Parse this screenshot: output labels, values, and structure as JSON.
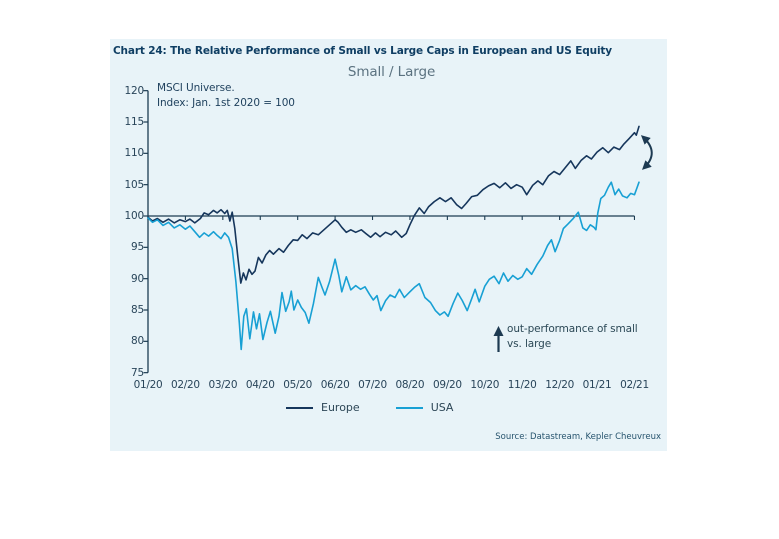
{
  "card": {
    "title": "Chart 24: The Relative Performance of Small vs Large Caps in European and US Equity",
    "source": "Source: Datastream, Kepler Cheuvreux"
  },
  "chart_data": {
    "type": "line",
    "title": "Small / Large",
    "note_line1": "MSCI Universe.",
    "note_line2": "Index: Jan. 1st 2020 = 100",
    "x_tick_labels": [
      "01/20",
      "02/20",
      "03/20",
      "04/20",
      "05/20",
      "06/20",
      "07/20",
      "08/20",
      "09/20",
      "10/20",
      "11/20",
      "12/20",
      "01/21",
      "02/21"
    ],
    "y_ticks": [
      120,
      115,
      110,
      105,
      100,
      95,
      90,
      85,
      80,
      75
    ],
    "ylim": [
      75,
      120
    ],
    "baseline": 100,
    "grid": false,
    "legend_position": "bottom",
    "annotation": {
      "line1": "out-performance of small",
      "line2": "vs. large"
    },
    "series": [
      {
        "name": "Europe",
        "color": "#16365c",
        "points": [
          [
            0,
            99.8
          ],
          [
            0.12,
            99.2
          ],
          [
            0.25,
            99.6
          ],
          [
            0.4,
            99
          ],
          [
            0.55,
            99.5
          ],
          [
            0.7,
            98.9
          ],
          [
            0.85,
            99.4
          ],
          [
            1,
            99.1
          ],
          [
            1.12,
            99.5
          ],
          [
            1.25,
            98.9
          ],
          [
            1.4,
            99.6
          ],
          [
            1.5,
            100.5
          ],
          [
            1.62,
            100.2
          ],
          [
            1.75,
            100.9
          ],
          [
            1.85,
            100.5
          ],
          [
            1.95,
            101
          ],
          [
            2.05,
            100.4
          ],
          [
            2.12,
            100.9
          ],
          [
            2.19,
            99.2
          ],
          [
            2.25,
            100.6
          ],
          [
            2.32,
            98
          ],
          [
            2.4,
            93.5
          ],
          [
            2.48,
            89.3
          ],
          [
            2.55,
            90.9
          ],
          [
            2.62,
            89.8
          ],
          [
            2.7,
            91.5
          ],
          [
            2.78,
            90.7
          ],
          [
            2.86,
            91.2
          ],
          [
            2.95,
            93.4
          ],
          [
            3.05,
            92.5
          ],
          [
            3.15,
            93.8
          ],
          [
            3.25,
            94.5
          ],
          [
            3.35,
            93.9
          ],
          [
            3.5,
            94.8
          ],
          [
            3.62,
            94.2
          ],
          [
            3.75,
            95.3
          ],
          [
            3.88,
            96.2
          ],
          [
            4,
            96.1
          ],
          [
            4.12,
            97
          ],
          [
            4.25,
            96.4
          ],
          [
            4.4,
            97.3
          ],
          [
            4.55,
            97
          ],
          [
            4.7,
            97.8
          ],
          [
            4.85,
            98.6
          ],
          [
            5,
            99.4
          ],
          [
            5.08,
            99
          ],
          [
            5.18,
            98.2
          ],
          [
            5.3,
            97.4
          ],
          [
            5.42,
            97.8
          ],
          [
            5.55,
            97.4
          ],
          [
            5.7,
            97.8
          ],
          [
            5.82,
            97.2
          ],
          [
            5.95,
            96.6
          ],
          [
            6.08,
            97.3
          ],
          [
            6.2,
            96.7
          ],
          [
            6.35,
            97.4
          ],
          [
            6.5,
            97
          ],
          [
            6.62,
            97.6
          ],
          [
            6.78,
            96.6
          ],
          [
            6.9,
            97.2
          ],
          [
            7,
            98.6
          ],
          [
            7.12,
            100.1
          ],
          [
            7.25,
            101.3
          ],
          [
            7.38,
            100.4
          ],
          [
            7.5,
            101.5
          ],
          [
            7.65,
            102.3
          ],
          [
            7.8,
            102.9
          ],
          [
            7.95,
            102.3
          ],
          [
            8.1,
            102.9
          ],
          [
            8.25,
            101.8
          ],
          [
            8.38,
            101.2
          ],
          [
            8.5,
            102
          ],
          [
            8.65,
            103.1
          ],
          [
            8.8,
            103.3
          ],
          [
            8.95,
            104.2
          ],
          [
            9.1,
            104.8
          ],
          [
            9.25,
            105.2
          ],
          [
            9.4,
            104.5
          ],
          [
            9.55,
            105.3
          ],
          [
            9.7,
            104.4
          ],
          [
            9.85,
            105
          ],
          [
            10,
            104.6
          ],
          [
            10.12,
            103.4
          ],
          [
            10.28,
            104.9
          ],
          [
            10.42,
            105.6
          ],
          [
            10.55,
            105
          ],
          [
            10.7,
            106.4
          ],
          [
            10.85,
            107.1
          ],
          [
            11,
            106.6
          ],
          [
            11.15,
            107.7
          ],
          [
            11.3,
            108.8
          ],
          [
            11.42,
            107.6
          ],
          [
            11.58,
            108.9
          ],
          [
            11.72,
            109.6
          ],
          [
            11.85,
            109.1
          ],
          [
            12,
            110.2
          ],
          [
            12.15,
            110.9
          ],
          [
            12.3,
            110.1
          ],
          [
            12.45,
            111
          ],
          [
            12.6,
            110.6
          ],
          [
            12.72,
            111.5
          ],
          [
            12.85,
            112.3
          ],
          [
            13,
            113.3
          ],
          [
            13.05,
            112.9
          ],
          [
            13.12,
            114.3
          ]
        ]
      },
      {
        "name": "USA",
        "color": "#18a0d4",
        "points": [
          [
            0,
            99.7
          ],
          [
            0.12,
            99
          ],
          [
            0.25,
            99.4
          ],
          [
            0.4,
            98.5
          ],
          [
            0.55,
            99
          ],
          [
            0.7,
            98.1
          ],
          [
            0.85,
            98.6
          ],
          [
            1,
            97.9
          ],
          [
            1.12,
            98.4
          ],
          [
            1.25,
            97.5
          ],
          [
            1.38,
            96.6
          ],
          [
            1.5,
            97.3
          ],
          [
            1.62,
            96.8
          ],
          [
            1.75,
            97.5
          ],
          [
            1.85,
            96.9
          ],
          [
            1.95,
            96.4
          ],
          [
            2.05,
            97.3
          ],
          [
            2.15,
            96.6
          ],
          [
            2.25,
            94.8
          ],
          [
            2.35,
            89.5
          ],
          [
            2.44,
            83
          ],
          [
            2.49,
            78.7
          ],
          [
            2.56,
            84
          ],
          [
            2.63,
            85.2
          ],
          [
            2.72,
            80.4
          ],
          [
            2.82,
            84.7
          ],
          [
            2.9,
            82
          ],
          [
            2.98,
            84.4
          ],
          [
            3.07,
            80.3
          ],
          [
            3.18,
            83
          ],
          [
            3.27,
            84.8
          ],
          [
            3.4,
            81.3
          ],
          [
            3.5,
            84
          ],
          [
            3.58,
            87.8
          ],
          [
            3.68,
            84.8
          ],
          [
            3.77,
            86.3
          ],
          [
            3.83,
            88
          ],
          [
            3.9,
            85
          ],
          [
            4,
            86.6
          ],
          [
            4.1,
            85.4
          ],
          [
            4.2,
            84.6
          ],
          [
            4.3,
            82.9
          ],
          [
            4.42,
            86
          ],
          [
            4.55,
            90.2
          ],
          [
            4.65,
            88.6
          ],
          [
            4.73,
            87.4
          ],
          [
            4.85,
            89.5
          ],
          [
            5,
            93.1
          ],
          [
            5.1,
            90.5
          ],
          [
            5.18,
            87.9
          ],
          [
            5.3,
            90.3
          ],
          [
            5.42,
            88.2
          ],
          [
            5.55,
            88.9
          ],
          [
            5.68,
            88.3
          ],
          [
            5.8,
            88.7
          ],
          [
            5.92,
            87.5
          ],
          [
            6.02,
            86.6
          ],
          [
            6.12,
            87.3
          ],
          [
            6.22,
            84.9
          ],
          [
            6.35,
            86.5
          ],
          [
            6.47,
            87.4
          ],
          [
            6.6,
            87
          ],
          [
            6.72,
            88.3
          ],
          [
            6.85,
            87
          ],
          [
            7,
            87.9
          ],
          [
            7.12,
            88.6
          ],
          [
            7.25,
            89.2
          ],
          [
            7.4,
            87
          ],
          [
            7.55,
            86.2
          ],
          [
            7.68,
            84.9
          ],
          [
            7.8,
            84.2
          ],
          [
            7.92,
            84.7
          ],
          [
            8.02,
            84
          ],
          [
            8.15,
            86
          ],
          [
            8.28,
            87.7
          ],
          [
            8.4,
            86.5
          ],
          [
            8.53,
            84.9
          ],
          [
            8.65,
            86.8
          ],
          [
            8.74,
            88.3
          ],
          [
            8.85,
            86.3
          ],
          [
            9,
            88.8
          ],
          [
            9.12,
            89.9
          ],
          [
            9.25,
            90.4
          ],
          [
            9.38,
            89.2
          ],
          [
            9.5,
            90.9
          ],
          [
            9.62,
            89.6
          ],
          [
            9.75,
            90.5
          ],
          [
            9.88,
            89.9
          ],
          [
            10,
            90.3
          ],
          [
            10.12,
            91.6
          ],
          [
            10.25,
            90.7
          ],
          [
            10.4,
            92.3
          ],
          [
            10.55,
            93.6
          ],
          [
            10.68,
            95.3
          ],
          [
            10.78,
            96.2
          ],
          [
            10.88,
            94.3
          ],
          [
            11,
            96.1
          ],
          [
            11.1,
            98
          ],
          [
            11.22,
            98.7
          ],
          [
            11.35,
            99.5
          ],
          [
            11.5,
            100.6
          ],
          [
            11.62,
            98.1
          ],
          [
            11.72,
            97.7
          ],
          [
            11.82,
            98.6
          ],
          [
            11.92,
            98.2
          ],
          [
            11.97,
            97.8
          ],
          [
            12.02,
            100.5
          ],
          [
            12.1,
            102.8
          ],
          [
            12.2,
            103.3
          ],
          [
            12.3,
            104.6
          ],
          [
            12.38,
            105.4
          ],
          [
            12.48,
            103.4
          ],
          [
            12.58,
            104.3
          ],
          [
            12.68,
            103.2
          ],
          [
            12.8,
            102.9
          ],
          [
            12.9,
            103.6
          ],
          [
            13,
            103.4
          ],
          [
            13.12,
            105.4
          ]
        ]
      }
    ],
    "colors": {
      "card_background": "#e8f3f8",
      "axis": "#1c3c52",
      "title_text": "#0f3e63",
      "subtitle_text": "#5b7280"
    }
  }
}
